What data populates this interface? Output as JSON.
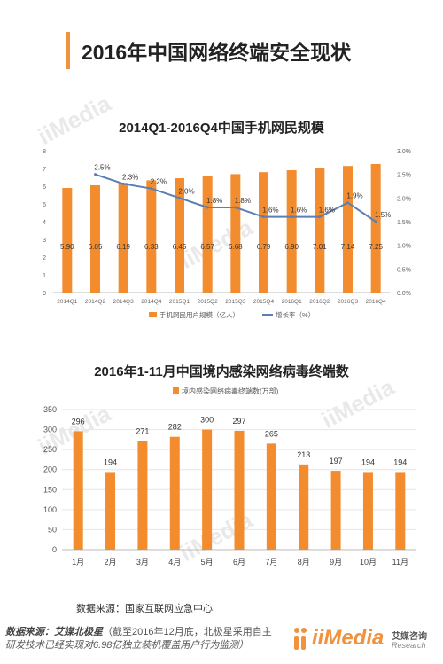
{
  "page": {
    "title": "2016年中国网络终端安全现状",
    "watermark_text": "iiMedia",
    "watermark_cn": "艾媒咨询",
    "watermark_en": "Research"
  },
  "colors": {
    "accent": "#f0923e",
    "bar": "#f28c2e",
    "line": "#5b7fb3",
    "axis": "#bbbbbb",
    "grid": "#e6e6e6"
  },
  "chart_data": [
    {
      "type": "bar",
      "title": "2014Q1-2016Q4中国手机网民规模",
      "categories": [
        "2014Q1",
        "2014Q2",
        "2014Q3",
        "2014Q4",
        "2015Q1",
        "2015Q2",
        "2015Q3",
        "2015Q4",
        "2016Q1",
        "2016Q2",
        "2016Q3",
        "2016Q4"
      ],
      "series": [
        {
          "name": "手机网民用户规模（亿人）",
          "kind": "bar",
          "axis": "left",
          "values": [
            5.9,
            6.05,
            6.19,
            6.33,
            6.45,
            6.57,
            6.68,
            6.79,
            6.9,
            7.01,
            7.14,
            7.25
          ],
          "labels": [
            "5.90",
            "6.05",
            "6.19",
            "6.33",
            "6.45",
            "6.57",
            "6.68",
            "6.79",
            "6.90",
            "7.01",
            "7.14",
            "7.25"
          ]
        },
        {
          "name": "增长率（%）",
          "kind": "line",
          "axis": "right",
          "values": [
            null,
            2.5,
            2.3,
            2.2,
            2.0,
            1.8,
            1.8,
            1.6,
            1.6,
            1.6,
            1.9,
            1.5
          ],
          "labels": [
            "",
            "2.5%",
            "2.3%",
            "2.2%",
            "2.0%",
            "1.8%",
            "1.8%",
            "1.6%",
            "1.6%",
            "1.6%",
            "1.9%",
            "1.5%"
          ]
        }
      ],
      "ylim": [
        0,
        8
      ],
      "yticks": [
        "0",
        "1",
        "2",
        "3",
        "4",
        "5",
        "6",
        "7",
        "8"
      ],
      "y2lim": [
        0,
        3.0
      ],
      "y2ticks": [
        "0.0%",
        "0.5%",
        "1.0%",
        "1.5%",
        "2.0%",
        "2.5%",
        "3.0%"
      ],
      "legend_position": "bottom",
      "grid": false
    },
    {
      "type": "bar",
      "title": "2016年1-11月中国境内感染网络病毒终端数",
      "categories": [
        "1月",
        "2月",
        "3月",
        "4月",
        "5月",
        "6月",
        "7月",
        "8月",
        "9月",
        "10月",
        "11月"
      ],
      "series": [
        {
          "name": "境内感染网络病毒终端数(万部)",
          "kind": "bar",
          "axis": "left",
          "values": [
            296,
            194,
            271,
            282,
            300,
            297,
            265,
            213,
            197,
            194,
            194
          ],
          "labels": [
            "296",
            "194",
            "271",
            "282",
            "300",
            "297",
            "265",
            "213",
            "197",
            "194",
            "194"
          ]
        }
      ],
      "ylim": [
        0,
        350
      ],
      "yticks": [
        "0",
        "50",
        "100",
        "150",
        "200",
        "250",
        "300",
        "350"
      ],
      "legend_position": "top",
      "grid": true,
      "source": "数据来源：国家互联网应急中心"
    }
  ],
  "footer": {
    "source_label": "数据来源：艾媒北极星",
    "source_note": "（截至2016年12月底，北极星采用自主",
    "source_note2": "研发技术已经实现对6.98亿独立装机覆盖用户行为监测）",
    "brand_name": "iiMedia",
    "brand_cn": "艾媒咨询",
    "brand_en": "Research"
  }
}
